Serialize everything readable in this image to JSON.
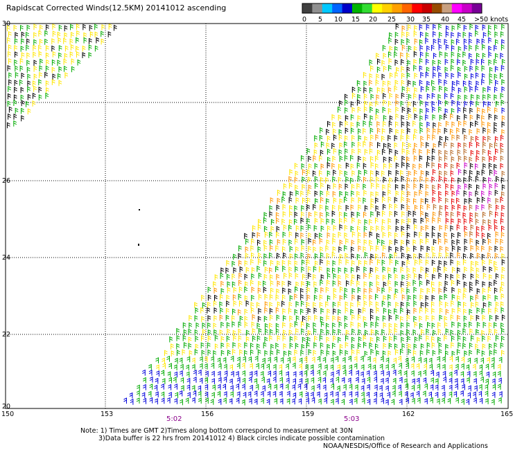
{
  "title": "Rapidscat Corrected Winds(12.5KM) 20141012 ascending",
  "colorbar": {
    "labels": [
      "0",
      "5",
      "10",
      "15",
      "20",
      "25",
      "30",
      "35",
      "40",
      "45",
      ">50 knots"
    ],
    "colors": [
      "#404040",
      "#909090",
      "#00c8ff",
      "#0064ff",
      "#0000c8",
      "#00b400",
      "#32dc32",
      "#ffff00",
      "#ffd000",
      "#ffa000",
      "#ff6400",
      "#ff0000",
      "#c80000",
      "#964b00",
      "#c8a080",
      "#ff00ff",
      "#c800c8",
      "#780096"
    ]
  },
  "axes": {
    "x_ticks": [
      "150",
      "153",
      "156",
      "159",
      "162",
      "165"
    ],
    "y_ticks": [
      "30",
      "28",
      "26",
      "24",
      "22",
      "20"
    ]
  },
  "times": [
    "5:02",
    "5:03"
  ],
  "notes": {
    "line1": "Note: 1) Times are GMT 2)Times along bottom correspond to measurement at 30N",
    "line2": "3)Data buffer is 22 hrs from 20141012 4) Black circles indicate possible contamination",
    "line3": "NOAA/NESDIS/Office of Research and Applications"
  },
  "wind_colors": {
    "calm": "#000000",
    "blue": "#0000dc",
    "green": "#00aa00",
    "yellow": "#ffe600",
    "orange": "#ff9600",
    "red": "#e60000",
    "brown": "#b4641e",
    "magenta": "#c800c8"
  }
}
